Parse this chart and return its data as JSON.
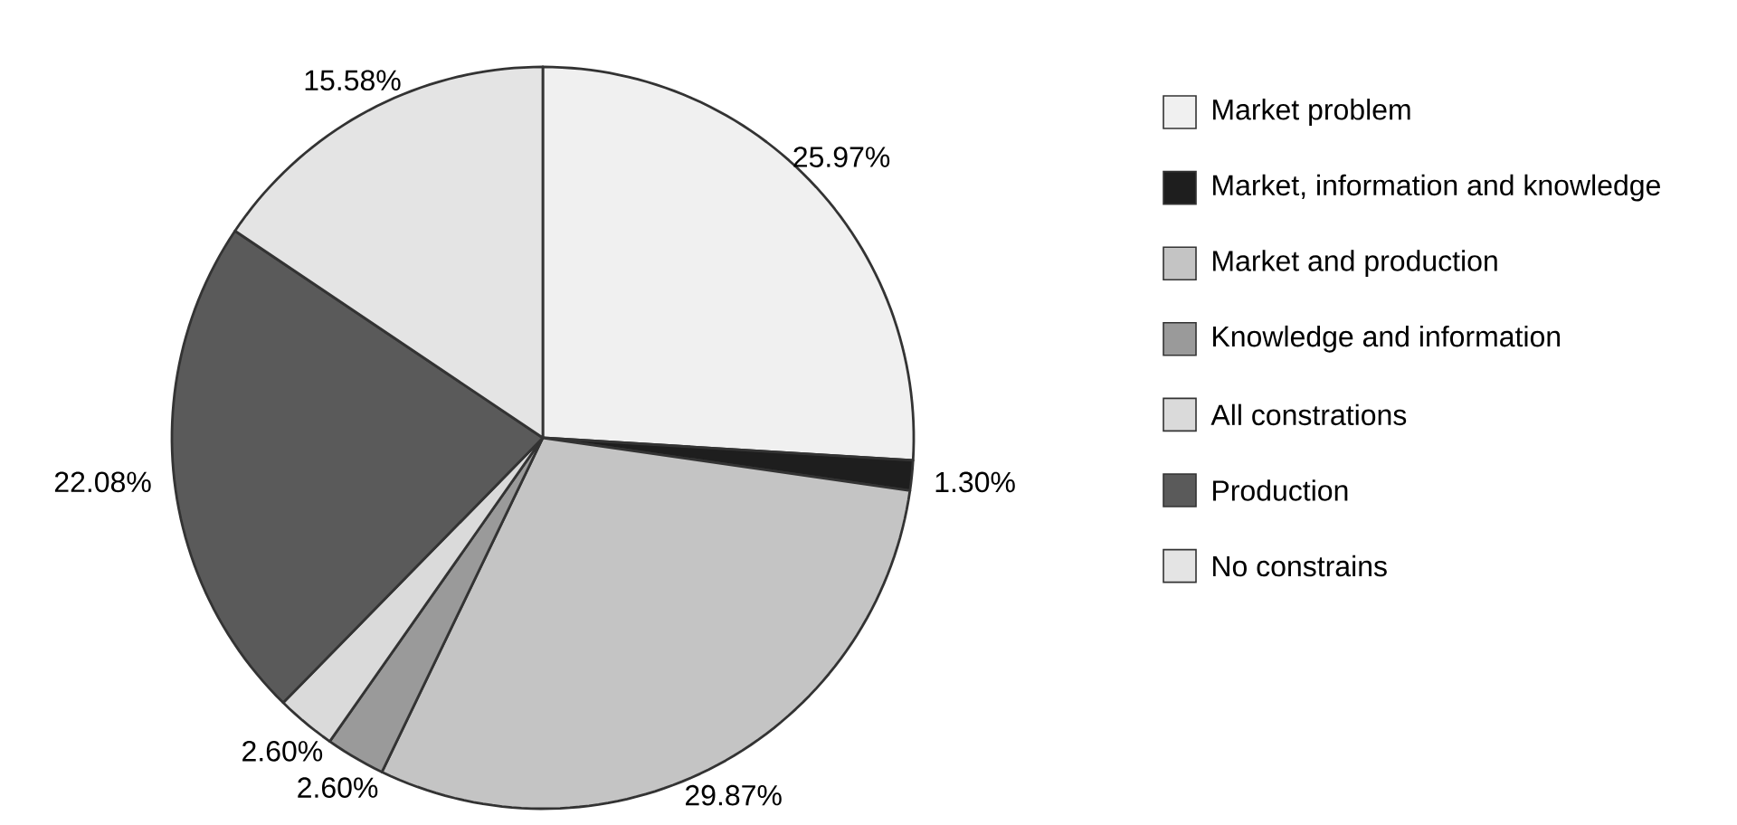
{
  "chart_data": {
    "type": "pie",
    "categories": [
      "Market problem",
      "Market, information and knowledge",
      "Market and production",
      "Knowledge and information",
      "All constrations",
      "Production",
      "No constrains"
    ],
    "values": [
      25.97,
      1.3,
      29.87,
      2.6,
      2.6,
      22.08,
      15.58
    ],
    "value_labels": [
      "25.97%",
      "1.30%",
      "29.87%",
      "2.60%",
      "2.60%",
      "22.08%",
      "15.58%"
    ],
    "colors": [
      "#f0f0f0",
      "#1e1e1e",
      "#c4c4c4",
      "#9a9a9a",
      "#dadada",
      "#5a5a5a",
      "#e4e4e4"
    ],
    "legend": "right"
  }
}
